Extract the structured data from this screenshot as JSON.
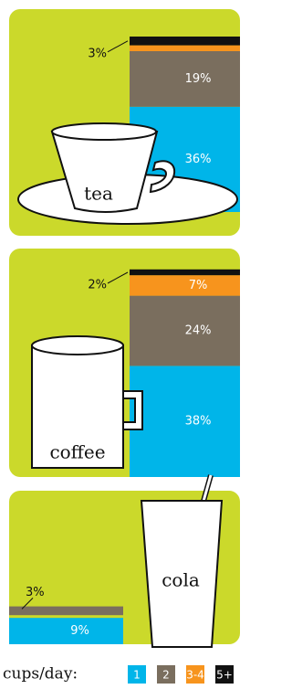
{
  "chart_data": {
    "type": "stacked-bar",
    "categories": [
      "tea",
      "coffee",
      "cola"
    ],
    "legend_title": "cups/day:",
    "panel_color": "#cbd92b",
    "series": [
      {
        "name": "1",
        "color": "#00b5e9",
        "values": [
          36,
          38,
          9
        ],
        "value_labels": [
          "36%",
          "38%",
          "9%"
        ]
      },
      {
        "name": "2",
        "color": "#7a6e5e",
        "values": [
          19,
          24,
          3
        ],
        "value_labels": [
          "19%",
          "24%",
          "3%"
        ]
      },
      {
        "name": "3-4",
        "color": "#f7941d",
        "values": [
          2,
          7,
          0
        ],
        "value_labels": [
          null,
          "7%",
          null
        ]
      },
      {
        "name": "5+",
        "color": "#111111",
        "values": [
          3,
          2,
          0
        ],
        "value_labels": [
          "3%",
          "2%",
          null
        ]
      }
    ]
  }
}
